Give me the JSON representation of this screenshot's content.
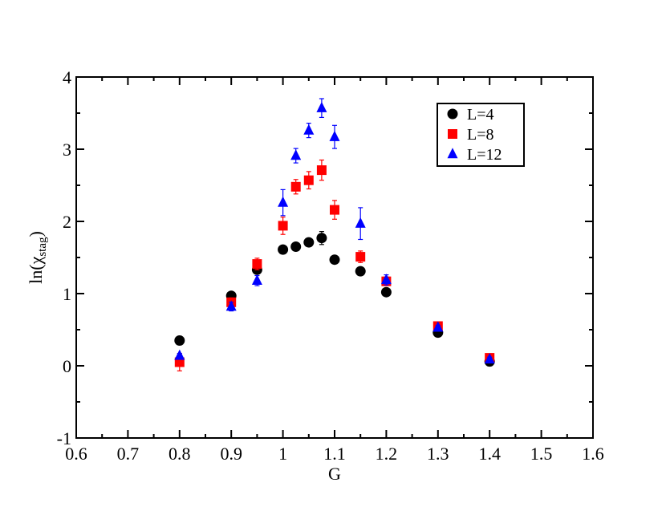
{
  "chart_data": {
    "type": "scatter",
    "xlabel": "G",
    "ylabel": {
      "main": "ln(χ",
      "sub": "stag",
      "close": ")"
    },
    "xlim": [
      0.6,
      1.6
    ],
    "ylim": [
      -1,
      4
    ],
    "xticks": [
      "0.6",
      "0.7",
      "0.8",
      "0.9",
      "1",
      "1.1",
      "1.2",
      "1.3",
      "1.4",
      "1.5",
      "1.6"
    ],
    "yticks": [
      "-1",
      "0",
      "1",
      "2",
      "3",
      "4"
    ],
    "grid": false,
    "legend_position": "top-right",
    "series": [
      {
        "name": "L=4",
        "marker": "circle",
        "color": "#000000",
        "points": [
          {
            "x": 0.8,
            "y": 0.35,
            "err": 0.06
          },
          {
            "x": 0.9,
            "y": 0.97,
            "err": 0.03
          },
          {
            "x": 0.95,
            "y": 1.33,
            "err": 0.04
          },
          {
            "x": 1.0,
            "y": 1.61,
            "err": 0.03
          },
          {
            "x": 1.025,
            "y": 1.65,
            "err": 0.04
          },
          {
            "x": 1.05,
            "y": 1.71,
            "err": 0.04
          },
          {
            "x": 1.075,
            "y": 1.77,
            "err": 0.09
          },
          {
            "x": 1.1,
            "y": 1.47,
            "err": 0.03
          },
          {
            "x": 1.15,
            "y": 1.31,
            "err": 0.05
          },
          {
            "x": 1.2,
            "y": 1.02,
            "err": 0.03
          },
          {
            "x": 1.3,
            "y": 0.46,
            "err": 0.04
          },
          {
            "x": 1.4,
            "y": 0.06,
            "err": 0.06
          }
        ]
      },
      {
        "name": "L=8",
        "marker": "square",
        "color": "#ff0000",
        "points": [
          {
            "x": 0.8,
            "y": 0.05,
            "err": 0.12
          },
          {
            "x": 0.9,
            "y": 0.88,
            "err": 0.06
          },
          {
            "x": 0.95,
            "y": 1.41,
            "err": 0.08
          },
          {
            "x": 1.0,
            "y": 1.94,
            "err": 0.12
          },
          {
            "x": 1.025,
            "y": 2.48,
            "err": 0.1
          },
          {
            "x": 1.05,
            "y": 2.57,
            "err": 0.12
          },
          {
            "x": 1.075,
            "y": 2.71,
            "err": 0.14
          },
          {
            "x": 1.1,
            "y": 2.16,
            "err": 0.13
          },
          {
            "x": 1.15,
            "y": 1.51,
            "err": 0.08
          },
          {
            "x": 1.2,
            "y": 1.17,
            "err": 0.06
          },
          {
            "x": 1.3,
            "y": 0.55,
            "err": 0.05
          },
          {
            "x": 1.4,
            "y": 0.11,
            "err": 0.04
          }
        ]
      },
      {
        "name": "L=12",
        "marker": "triangle",
        "color": "#0000ff",
        "points": [
          {
            "x": 0.8,
            "y": 0.14,
            "err": 0.03
          },
          {
            "x": 0.9,
            "y": 0.82,
            "err": 0.06
          },
          {
            "x": 0.95,
            "y": 1.18,
            "err": 0.07
          },
          {
            "x": 1.0,
            "y": 2.26,
            "err": 0.18
          },
          {
            "x": 1.025,
            "y": 2.91,
            "err": 0.1
          },
          {
            "x": 1.05,
            "y": 3.26,
            "err": 0.1
          },
          {
            "x": 1.075,
            "y": 3.57,
            "err": 0.13
          },
          {
            "x": 1.1,
            "y": 3.17,
            "err": 0.16
          },
          {
            "x": 1.15,
            "y": 1.97,
            "err": 0.22
          },
          {
            "x": 1.2,
            "y": 1.19,
            "err": 0.07
          },
          {
            "x": 1.3,
            "y": 0.53,
            "err": 0.03
          },
          {
            "x": 1.4,
            "y": 0.09,
            "err": 0.03
          }
        ]
      }
    ]
  }
}
